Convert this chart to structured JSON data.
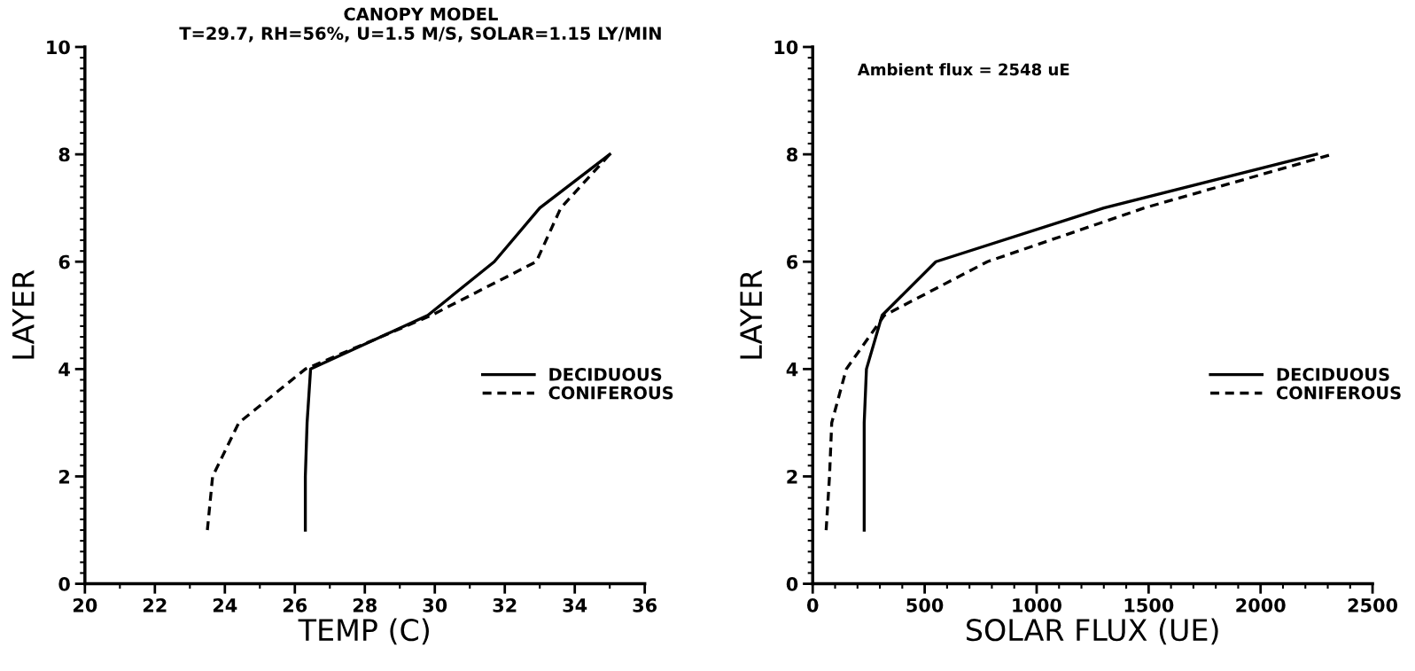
{
  "chart_data": [
    {
      "type": "line",
      "title": "CANOPY MODEL",
      "subtitle": "T=29.7, RH=56%, U=1.5 M/S, SOLAR=1.15 LY/MIN",
      "xlabel": "TEMP (C)",
      "ylabel": "LAYER",
      "xlim": [
        20,
        36
      ],
      "xticks": [
        20,
        22,
        24,
        26,
        28,
        30,
        32,
        34,
        36
      ],
      "ylim": [
        0,
        10
      ],
      "yticks": [
        0,
        2,
        4,
        6,
        8,
        10
      ],
      "grid": false,
      "legend": "right",
      "marker": "none",
      "series": [
        {
          "name": "DECIDUOUS",
          "color": "#000000",
          "line_style": "solid",
          "x": [
            26.3,
            26.3,
            26.35,
            26.45,
            29.8,
            31.7,
            33.0,
            35.0
          ],
          "values": [
            1,
            2,
            3,
            4,
            5,
            6,
            7,
            8
          ]
        },
        {
          "name": "CONIFEROUS",
          "color": "#000000",
          "line_style": "dashed",
          "x": [
            23.5,
            23.65,
            24.4,
            26.3,
            29.9,
            32.9,
            33.6,
            35.0
          ],
          "values": [
            1,
            2,
            3,
            4,
            5,
            6,
            7,
            8
          ]
        }
      ]
    },
    {
      "type": "line",
      "xlabel": "SOLAR FLUX (UE)",
      "ylabel": "LAYER",
      "annotations": [
        "Ambient flux = 2548 uE"
      ],
      "xlim": [
        0,
        2500
      ],
      "xticks": [
        0,
        500,
        1000,
        1500,
        2000,
        2500
      ],
      "ylim": [
        0,
        10
      ],
      "yticks": [
        0,
        2,
        4,
        6,
        8,
        10
      ],
      "grid": false,
      "legend": "right",
      "marker": "none",
      "series": [
        {
          "name": "DECIDUOUS",
          "color": "#000000",
          "line_style": "solid",
          "x": [
            230,
            230,
            230,
            240,
            310,
            550,
            1300,
            2250
          ],
          "values": [
            1,
            2,
            3,
            4,
            5,
            6,
            7,
            8
          ]
        },
        {
          "name": "CONIFEROUS",
          "color": "#000000",
          "line_style": "dashed",
          "x": [
            60,
            75,
            85,
            150,
            320,
            780,
            1480,
            2320
          ],
          "values": [
            1,
            2,
            3,
            4,
            5,
            6,
            7,
            8
          ]
        }
      ]
    }
  ]
}
